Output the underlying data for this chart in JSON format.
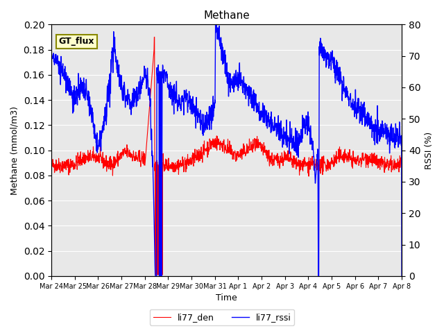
{
  "title": "Methane",
  "xlabel": "Time",
  "ylabel_left": "Methane (mmol/m3)",
  "ylabel_right": "RSSI (%)",
  "ylim_left": [
    0.0,
    0.2
  ],
  "ylim_right": [
    0,
    80
  ],
  "yticks_left": [
    0.0,
    0.02,
    0.04,
    0.06,
    0.08,
    0.1,
    0.12,
    0.14,
    0.16,
    0.18,
    0.2
  ],
  "yticks_right": [
    0,
    10,
    20,
    30,
    40,
    50,
    60,
    70,
    80
  ],
  "xtick_labels": [
    "Mar 24",
    "Mar 25",
    "Mar 26",
    "Mar 27",
    "Mar 28",
    "Mar 29",
    "Mar 30",
    "Mar 31",
    "Apr 1",
    "Apr 2",
    "Apr 3",
    "Apr 4",
    "Apr 5",
    "Apr 6",
    "Apr 7",
    "Apr 8"
  ],
  "color_den": "#ff0000",
  "color_rssi": "#0000ff",
  "legend_label_den": "li77_den",
  "legend_label_rssi": "li77_rssi",
  "box_label": "GT_flux",
  "background_color": "#e8e8e8",
  "grid_color": "#ffffff"
}
